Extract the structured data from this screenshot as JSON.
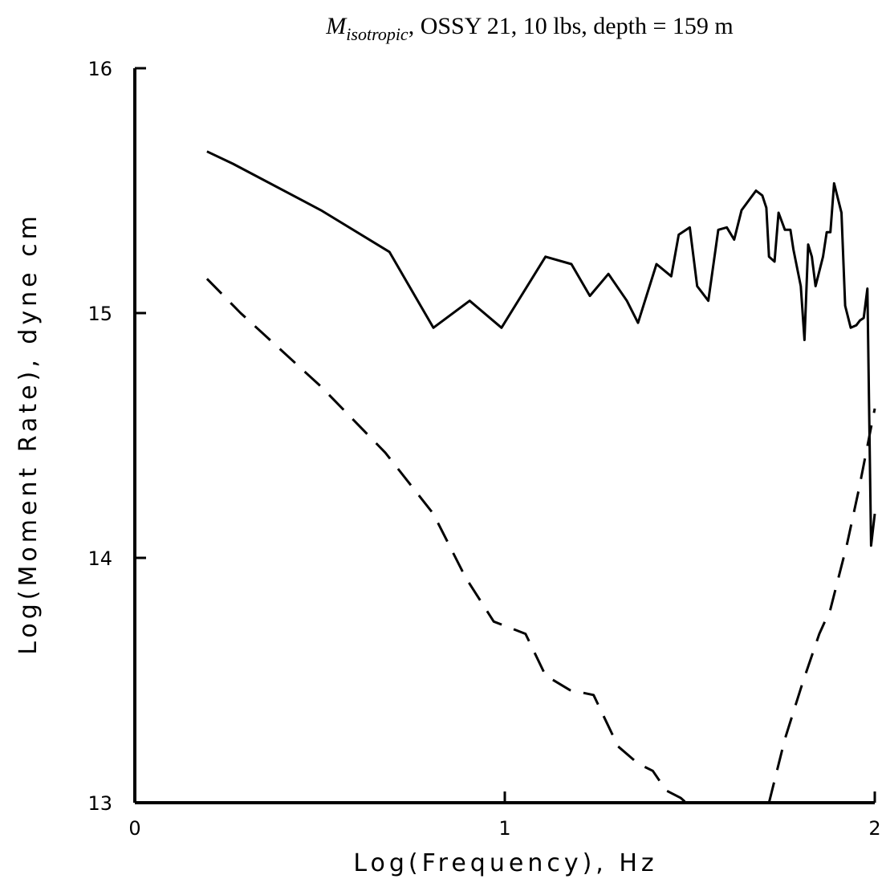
{
  "chart_data": {
    "type": "line",
    "title": {
      "symbol": "M",
      "subscript": "isotropic",
      "text": ", OSSY 21, 10 lbs, depth = 159 m"
    },
    "x_label": "Log(Frequency), Hz",
    "y_label": "Log(Moment Rate), dyne cm",
    "xlim": [
      0,
      2
    ],
    "ylim": [
      13,
      16
    ],
    "xticks": [
      0,
      1,
      2
    ],
    "yticks": [
      13,
      14,
      15,
      16
    ],
    "grid": false,
    "series": [
      {
        "color": "#000000",
        "linestyle": "solid",
        "x": [
          0.195,
          0.265,
          0.503,
          0.688,
          0.807,
          0.905,
          0.991,
          1.11,
          1.18,
          1.23,
          1.28,
          1.33,
          1.36,
          1.41,
          1.45,
          1.47,
          1.5,
          1.52,
          1.55,
          1.577,
          1.6,
          1.62,
          1.64,
          1.679,
          1.696,
          1.707,
          1.714,
          1.729,
          1.74,
          1.757,
          1.772,
          1.78,
          1.8,
          1.81,
          1.82,
          1.83,
          1.84,
          1.86,
          1.87,
          1.88,
          1.89,
          1.91,
          1.92,
          1.935,
          1.95,
          1.96,
          1.97,
          1.98,
          1.99,
          2.0
        ],
        "values": [
          15.66,
          15.61,
          15.42,
          15.25,
          14.94,
          15.05,
          14.94,
          15.23,
          15.2,
          15.07,
          15.16,
          15.05,
          14.96,
          15.2,
          15.15,
          15.32,
          15.35,
          15.11,
          15.05,
          15.34,
          15.35,
          15.3,
          15.42,
          15.5,
          15.48,
          15.43,
          15.23,
          15.21,
          15.41,
          15.34,
          15.34,
          15.26,
          15.11,
          14.89,
          15.28,
          15.23,
          15.11,
          15.23,
          15.33,
          15.33,
          15.53,
          15.41,
          15.03,
          14.94,
          14.95,
          14.97,
          14.98,
          15.1,
          14.05,
          14.18
        ]
      },
      {
        "color": "#000000",
        "linestyle": "dashed",
        "x": [
          0.195,
          0.286,
          0.503,
          0.677,
          0.807,
          0.894,
          0.97,
          1.056,
          1.11,
          1.176,
          1.24,
          1.306,
          1.36,
          1.4,
          1.436,
          1.475,
          1.49,
          null,
          1.714,
          1.757,
          1.805,
          1.85,
          1.88,
          1.924,
          1.957,
          2.0
        ],
        "values": [
          15.14,
          15.0,
          14.7,
          14.43,
          14.18,
          13.92,
          13.74,
          13.69,
          13.52,
          13.46,
          13.44,
          13.23,
          13.16,
          13.13,
          13.05,
          13.02,
          13.0,
          null,
          13.0,
          13.26,
          13.49,
          13.69,
          13.79,
          14.05,
          14.28,
          14.61
        ]
      }
    ]
  }
}
